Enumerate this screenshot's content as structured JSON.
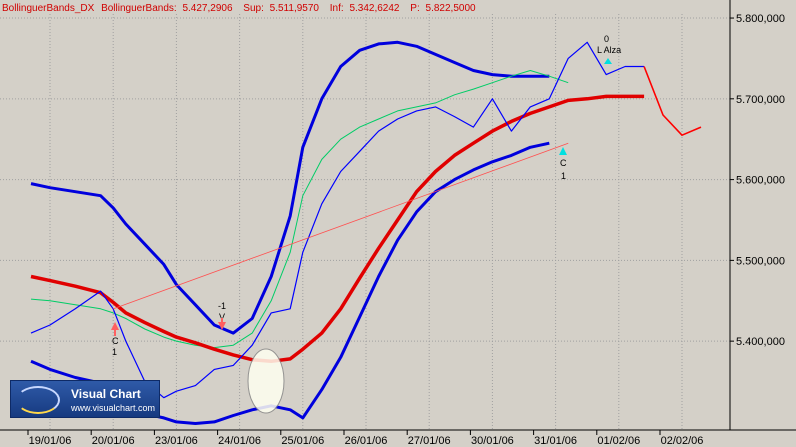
{
  "header": {
    "indicator": "BollinguerBands_DX",
    "name": "BollinguerBands:",
    "value": "5.427,2906",
    "sup_label": "Sup:",
    "sup_value": "5.511,9570",
    "inf_label": "Inf:",
    "inf_value": "5.342,6242",
    "p_label": "P:",
    "p_value": "5.822,5000"
  },
  "colors": {
    "plot_bg": "#d4d0c8",
    "price": "#0000ff",
    "price_recent": "#ff0000",
    "ma": "#e00000",
    "outer_band": "#0000dd",
    "inner_band": "#0000ff",
    "mid_line": "#00cc66",
    "trend": "#ff5050",
    "grid": "#a0a0a0"
  },
  "logo": {
    "title": "Visual Chart",
    "url": "www.visualchart.com"
  },
  "annotations": {
    "left_c": "C",
    "left_num": "1",
    "mid_v": "V",
    "mid_num": "-1",
    "right_c": "C",
    "right_num": "1",
    "top_alza": "L Alza",
    "top_num": "0"
  },
  "chart_data": {
    "type": "line",
    "title": "",
    "xlabel": "",
    "ylabel": "",
    "x_categories": [
      "19/01/06",
      "20/01/06",
      "23/01/06",
      "24/01/06",
      "25/01/06",
      "26/01/06",
      "27/01/06",
      "30/01/06",
      "31/01/06",
      "01/02/06",
      "02/02/06"
    ],
    "yticks": [
      "5.400,000",
      "5.500,000",
      "5.600,000",
      "5.700,000",
      "5.800,000"
    ],
    "ylim": [
      5290,
      5805
    ],
    "grid": true,
    "x": [
      -0.3,
      0.0,
      0.4,
      0.8,
      1.0,
      1.2,
      1.5,
      1.8,
      2.0,
      2.3,
      2.6,
      2.9,
      3.2,
      3.5,
      3.8,
      4.0,
      4.3,
      4.6,
      4.9,
      5.2,
      5.5,
      5.8,
      6.1,
      6.4,
      6.7,
      7.0,
      7.3,
      7.6,
      7.9,
      8.2,
      8.5,
      8.8,
      9.1,
      9.4,
      9.7,
      10.0,
      10.3
    ],
    "series": [
      {
        "values": [
          5410,
          5420,
          5440,
          5462,
          5440,
          5400,
          5350,
          5330,
          5338,
          5345,
          5365,
          5370,
          5395,
          5435,
          5440,
          5510,
          5570,
          5610,
          5635,
          5660,
          5675,
          5685,
          5690,
          5678,
          5665,
          5700,
          5660,
          5690,
          5700,
          5750,
          5770,
          5730,
          5740,
          5740,
          null,
          null,
          null
        ]
      },
      {
        "values": [
          null,
          null,
          null,
          null,
          null,
          null,
          null,
          null,
          null,
          null,
          null,
          null,
          null,
          null,
          null,
          null,
          null,
          null,
          null,
          null,
          null,
          null,
          null,
          null,
          null,
          null,
          null,
          null,
          null,
          null,
          null,
          null,
          null,
          5740,
          5680,
          5655,
          5665
        ]
      },
      {
        "values": [
          5480,
          5475,
          5468,
          5460,
          5448,
          5435,
          5423,
          5412,
          5405,
          5398,
          5390,
          5383,
          5377,
          5375,
          5378,
          5390,
          5410,
          5440,
          5478,
          5515,
          5550,
          5585,
          5610,
          5630,
          5645,
          5660,
          5672,
          5682,
          5690,
          5698,
          5700,
          5703,
          5703,
          5703,
          null,
          null,
          null
        ]
      },
      {
        "values": [
          5595,
          5590,
          5585,
          5580,
          5565,
          5545,
          5520,
          5495,
          5470,
          5445,
          5420,
          5410,
          5428,
          5480,
          5555,
          5640,
          5700,
          5740,
          5760,
          5768,
          5770,
          5765,
          5755,
          5745,
          5735,
          5730,
          5728,
          5728,
          5728,
          null,
          null,
          null,
          null,
          null,
          null,
          null,
          null
        ]
      },
      {
        "values": [
          5375,
          5365,
          5355,
          5348,
          5335,
          5320,
          5310,
          5305,
          5300,
          5298,
          5300,
          5308,
          5315,
          5320,
          5315,
          5305,
          5340,
          5380,
          5430,
          5480,
          5525,
          5560,
          5585,
          5600,
          5612,
          5622,
          5630,
          5640,
          5645,
          null,
          null,
          null,
          null,
          null,
          null,
          null,
          null
        ]
      },
      {
        "values": [
          5452,
          5450,
          5445,
          5440,
          5435,
          5428,
          5415,
          5405,
          5400,
          5395,
          5392,
          5395,
          5410,
          5450,
          5510,
          5580,
          5625,
          5650,
          5665,
          5675,
          5685,
          5690,
          5695,
          5705,
          5712,
          5720,
          5728,
          5735,
          5728,
          5720,
          null,
          null,
          null,
          null,
          null,
          null,
          null
        ]
      }
    ]
  }
}
